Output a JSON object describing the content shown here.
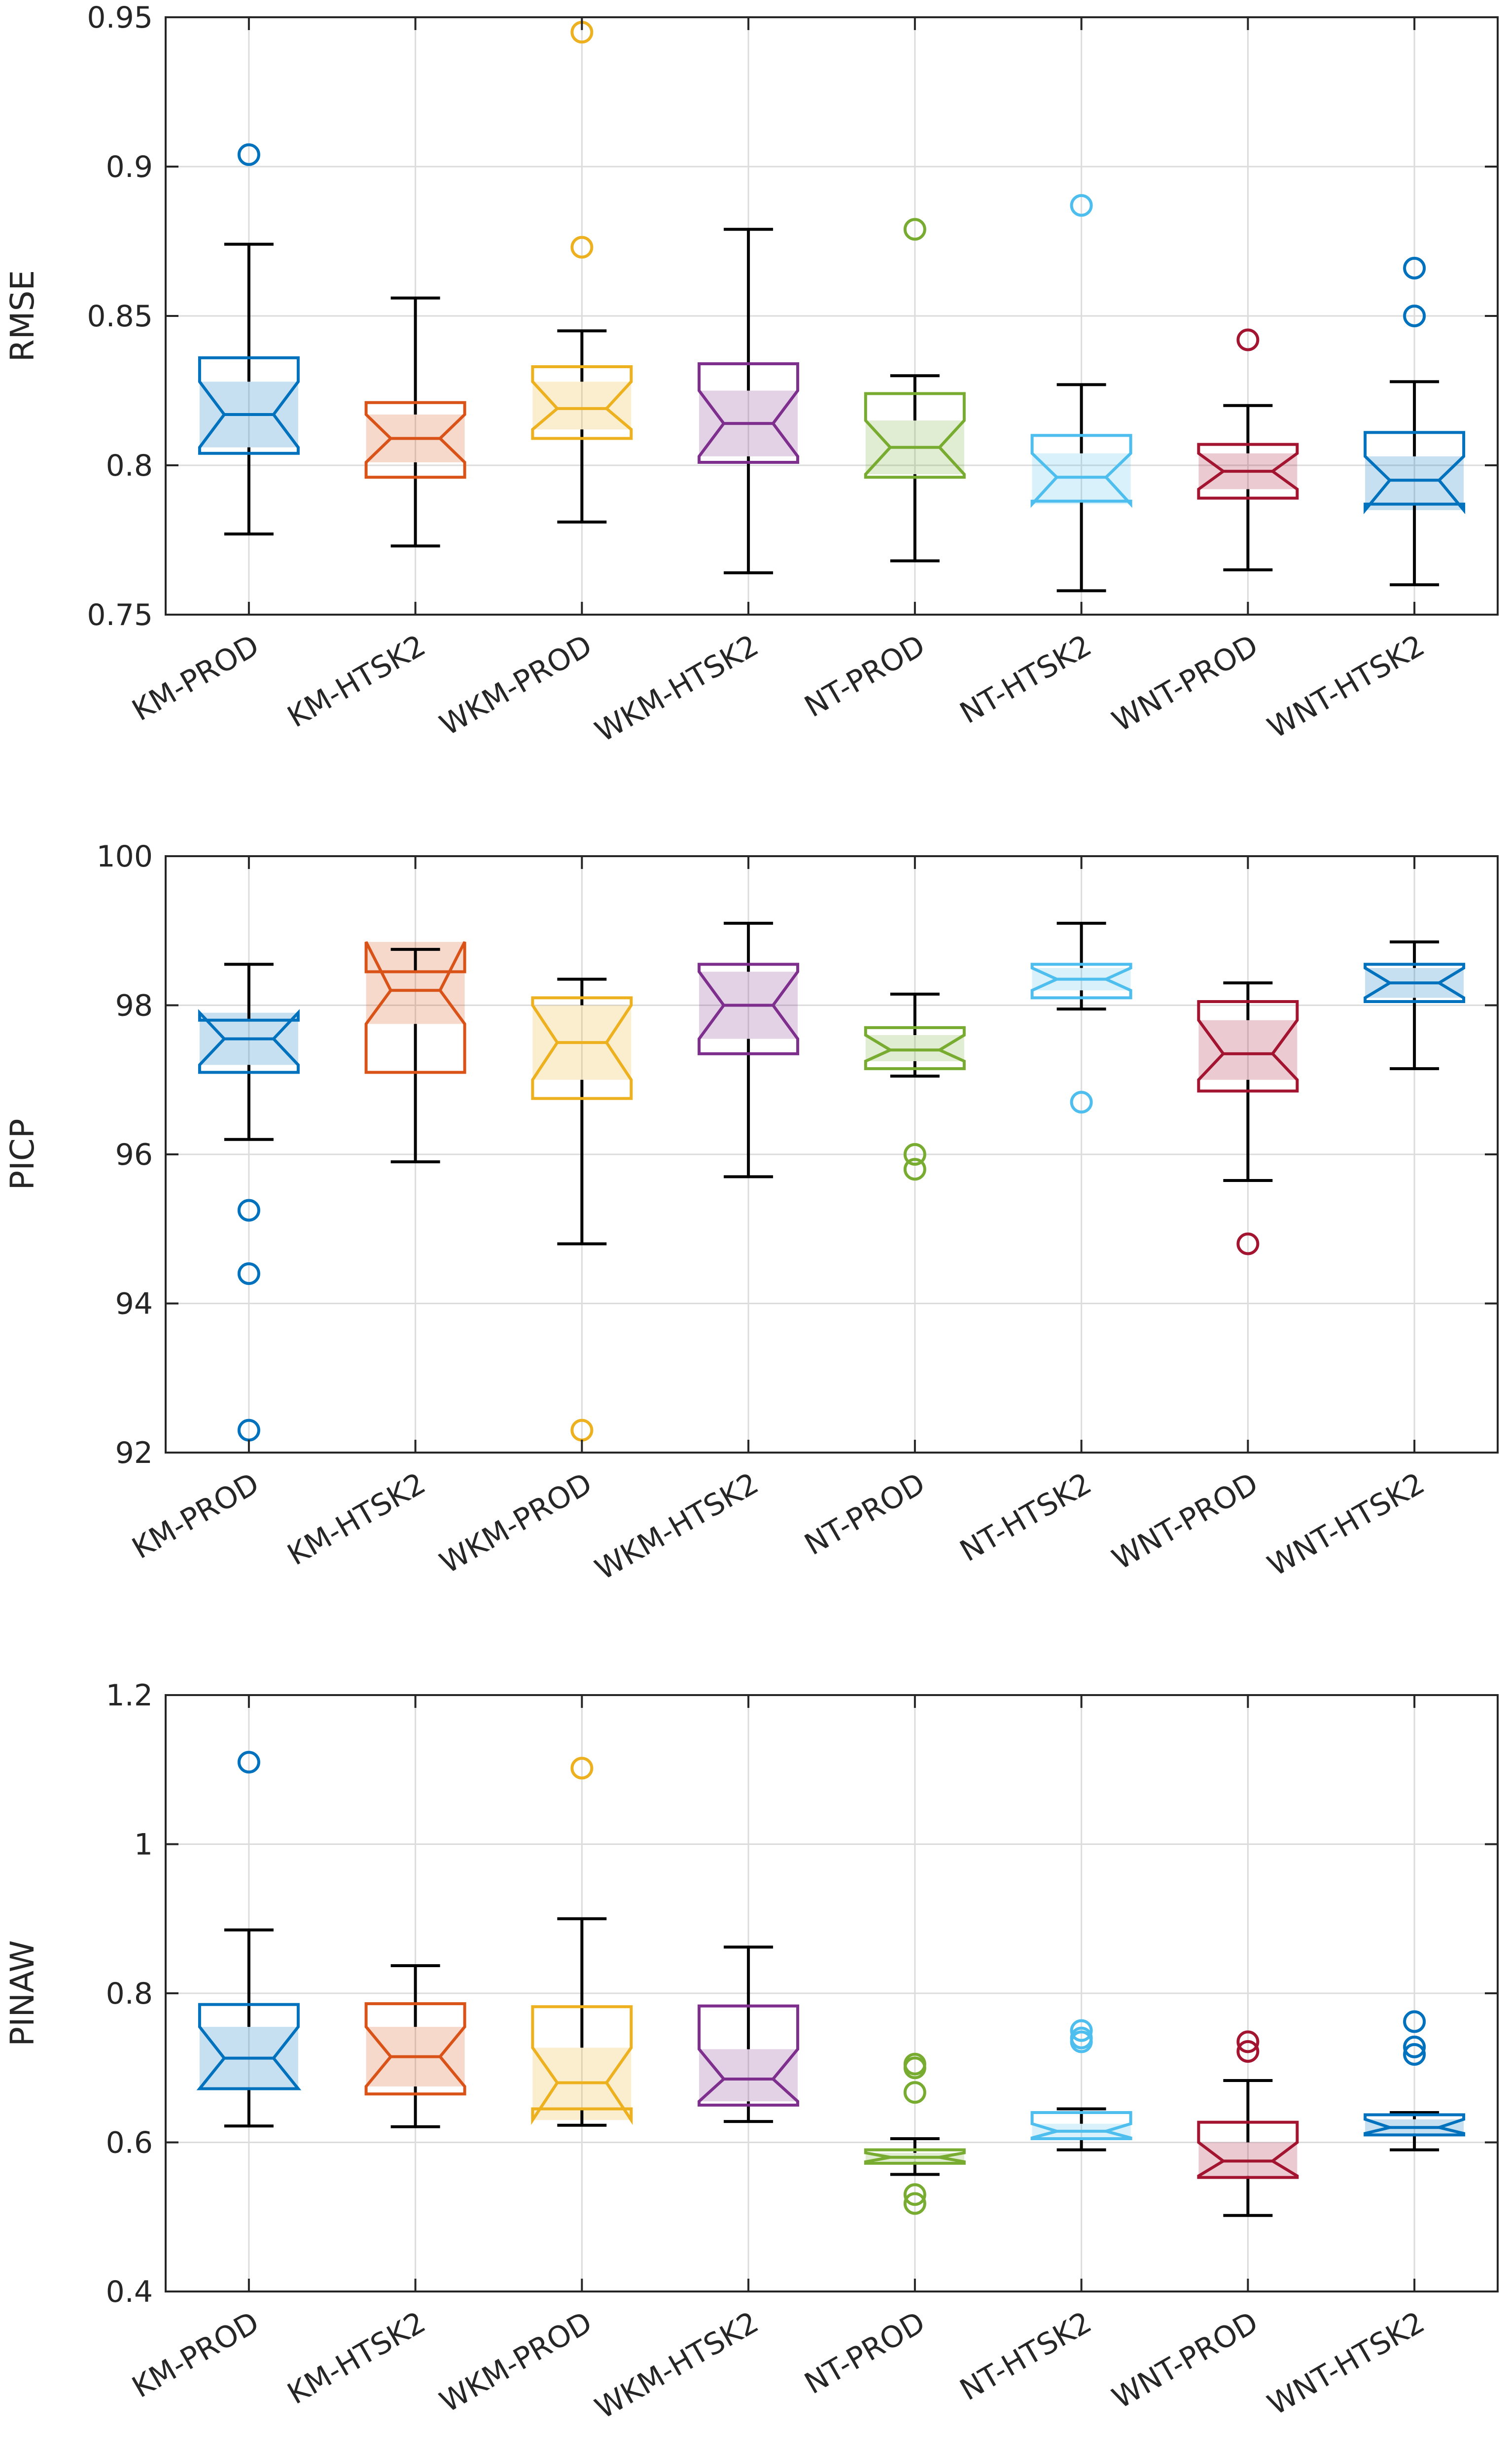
{
  "chart_data": [
    {
      "type": "boxplot",
      "ylabel": "RMSE",
      "ylim": [
        0.75,
        0.95
      ],
      "yticks": [
        0.75,
        0.8,
        0.85,
        0.9,
        0.95
      ],
      "ytick_labels": [
        "0.75",
        "0.8",
        "0.85",
        "0.9",
        "0.95"
      ],
      "grid": true,
      "categories": [
        "KM-PROD",
        "KM-HTSK2",
        "WKM-PROD",
        "WKM-HTSK2",
        "NT-PROD",
        "NT-HTSK2",
        "WNT-PROD",
        "WNT-HTSK2"
      ],
      "boxes": [
        {
          "q1": 0.804,
          "median": 0.817,
          "q3": 0.836,
          "notch_low": 0.806,
          "notch_high": 0.828,
          "whisker_low": 0.777,
          "whisker_high": 0.874,
          "outliers": [
            0.904
          ]
        },
        {
          "q1": 0.796,
          "median": 0.809,
          "q3": 0.821,
          "notch_low": 0.801,
          "notch_high": 0.817,
          "whisker_low": 0.773,
          "whisker_high": 0.856,
          "outliers": []
        },
        {
          "q1": 0.809,
          "median": 0.819,
          "q3": 0.833,
          "notch_low": 0.812,
          "notch_high": 0.828,
          "whisker_low": 0.781,
          "whisker_high": 0.845,
          "outliers": [
            0.873,
            0.945
          ]
        },
        {
          "q1": 0.801,
          "median": 0.814,
          "q3": 0.834,
          "notch_low": 0.803,
          "notch_high": 0.825,
          "whisker_low": 0.764,
          "whisker_high": 0.879,
          "outliers": []
        },
        {
          "q1": 0.796,
          "median": 0.806,
          "q3": 0.824,
          "notch_low": 0.797,
          "notch_high": 0.815,
          "whisker_low": 0.768,
          "whisker_high": 0.83,
          "outliers": [
            0.879
          ]
        },
        {
          "q1": 0.788,
          "median": 0.796,
          "q3": 0.81,
          "notch_low": 0.787,
          "notch_high": 0.804,
          "whisker_low": 0.758,
          "whisker_high": 0.827,
          "outliers": [
            0.887
          ]
        },
        {
          "q1": 0.789,
          "median": 0.798,
          "q3": 0.807,
          "notch_low": 0.792,
          "notch_high": 0.804,
          "whisker_low": 0.765,
          "whisker_high": 0.82,
          "outliers": [
            0.842
          ]
        },
        {
          "q1": 0.787,
          "median": 0.795,
          "q3": 0.811,
          "notch_low": 0.785,
          "notch_high": 0.803,
          "whisker_low": 0.76,
          "whisker_high": 0.828,
          "outliers": [
            0.85,
            0.866
          ]
        }
      ]
    },
    {
      "type": "boxplot",
      "ylabel": "PICP",
      "ylim": [
        92,
        100
      ],
      "yticks": [
        92,
        94,
        96,
        98,
        100
      ],
      "ytick_labels": [
        "92",
        "94",
        "96",
        "98",
        "100"
      ],
      "grid": true,
      "categories": [
        "KM-PROD",
        "KM-HTSK2",
        "WKM-PROD",
        "WKM-HTSK2",
        "NT-PROD",
        "NT-HTSK2",
        "WNT-PROD",
        "WNT-HTSK2"
      ],
      "boxes": [
        {
          "q1": 97.1,
          "median": 97.55,
          "q3": 97.8,
          "notch_low": 97.2,
          "notch_high": 97.9,
          "whisker_low": 96.2,
          "whisker_high": 98.55,
          "outliers": [
            95.25,
            94.4,
            92.3
          ]
        },
        {
          "q1": 97.1,
          "median": 98.2,
          "q3": 98.45,
          "notch_low": 97.75,
          "notch_high": 98.85,
          "whisker_low": 95.9,
          "whisker_high": 98.75,
          "outliers": []
        },
        {
          "q1": 96.75,
          "median": 97.5,
          "q3": 98.1,
          "notch_low": 97.0,
          "notch_high": 98.0,
          "whisker_low": 94.8,
          "whisker_high": 98.35,
          "outliers": [
            92.3
          ]
        },
        {
          "q1": 97.35,
          "median": 98.0,
          "q3": 98.55,
          "notch_low": 97.55,
          "notch_high": 98.45,
          "whisker_low": 95.7,
          "whisker_high": 99.1,
          "outliers": []
        },
        {
          "q1": 97.15,
          "median": 97.4,
          "q3": 97.7,
          "notch_low": 97.25,
          "notch_high": 97.6,
          "whisker_low": 97.05,
          "whisker_high": 98.15,
          "outliers": [
            96.0,
            95.8
          ]
        },
        {
          "q1": 98.1,
          "median": 98.35,
          "q3": 98.55,
          "notch_low": 98.2,
          "notch_high": 98.5,
          "whisker_low": 97.95,
          "whisker_high": 99.1,
          "outliers": [
            96.7
          ]
        },
        {
          "q1": 96.85,
          "median": 97.35,
          "q3": 98.05,
          "notch_low": 97.0,
          "notch_high": 97.8,
          "whisker_low": 95.65,
          "whisker_high": 98.3,
          "outliers": [
            94.8
          ]
        },
        {
          "q1": 98.05,
          "median": 98.3,
          "q3": 98.55,
          "notch_low": 98.1,
          "notch_high": 98.5,
          "whisker_low": 97.15,
          "whisker_high": 98.85,
          "outliers": []
        }
      ]
    },
    {
      "type": "boxplot",
      "ylabel": "PINAW",
      "ylim": [
        0.4,
        1.2
      ],
      "yticks": [
        0.4,
        0.6,
        0.8,
        1.0,
        1.2
      ],
      "ytick_labels": [
        "0.4",
        "0.6",
        "0.8",
        "1",
        "1.2"
      ],
      "grid": true,
      "categories": [
        "KM-PROD",
        "KM-HTSK2",
        "WKM-PROD",
        "WKM-HTSK2",
        "NT-PROD",
        "NT-HTSK2",
        "WNT-PROD",
        "WNT-HTSK2"
      ],
      "boxes": [
        {
          "q1": 0.672,
          "median": 0.713,
          "q3": 0.785,
          "notch_low": 0.672,
          "notch_high": 0.755,
          "whisker_low": 0.622,
          "whisker_high": 0.885,
          "outliers": [
            1.11
          ]
        },
        {
          "q1": 0.665,
          "median": 0.715,
          "q3": 0.786,
          "notch_low": 0.675,
          "notch_high": 0.755,
          "whisker_low": 0.621,
          "whisker_high": 0.837,
          "outliers": []
        },
        {
          "q1": 0.645,
          "median": 0.68,
          "q3": 0.782,
          "notch_low": 0.63,
          "notch_high": 0.727,
          "whisker_low": 0.623,
          "whisker_high": 0.9,
          "outliers": [
            1.102
          ]
        },
        {
          "q1": 0.65,
          "median": 0.685,
          "q3": 0.783,
          "notch_low": 0.655,
          "notch_high": 0.725,
          "whisker_low": 0.628,
          "whisker_high": 0.862,
          "outliers": []
        },
        {
          "q1": 0.572,
          "median": 0.58,
          "q3": 0.59,
          "notch_low": 0.574,
          "notch_high": 0.586,
          "whisker_low": 0.557,
          "whisker_high": 0.605,
          "outliers": [
            0.705,
            0.7,
            0.667,
            0.53,
            0.518
          ]
        },
        {
          "q1": 0.605,
          "median": 0.615,
          "q3": 0.64,
          "notch_low": 0.606,
          "notch_high": 0.625,
          "whisker_low": 0.59,
          "whisker_high": 0.645,
          "outliers": [
            0.75,
            0.74,
            0.735
          ]
        },
        {
          "q1": 0.553,
          "median": 0.575,
          "q3": 0.627,
          "notch_low": 0.555,
          "notch_high": 0.6,
          "whisker_low": 0.502,
          "whisker_high": 0.683,
          "outliers": [
            0.735,
            0.722
          ]
        },
        {
          "q1": 0.61,
          "median": 0.62,
          "q3": 0.637,
          "notch_low": 0.612,
          "notch_high": 0.631,
          "whisker_low": 0.59,
          "whisker_high": 0.64,
          "outliers": [
            0.762,
            0.728,
            0.718
          ]
        }
      ]
    }
  ],
  "colors": {
    "series": [
      "#0072BD",
      "#D95319",
      "#EDB120",
      "#7E2F8E",
      "#77AC30",
      "#4DBEEE",
      "#A2142F",
      "#0072BD"
    ],
    "axis": "#262626",
    "grid": "#dcdcdc",
    "whisker": "#000000"
  }
}
